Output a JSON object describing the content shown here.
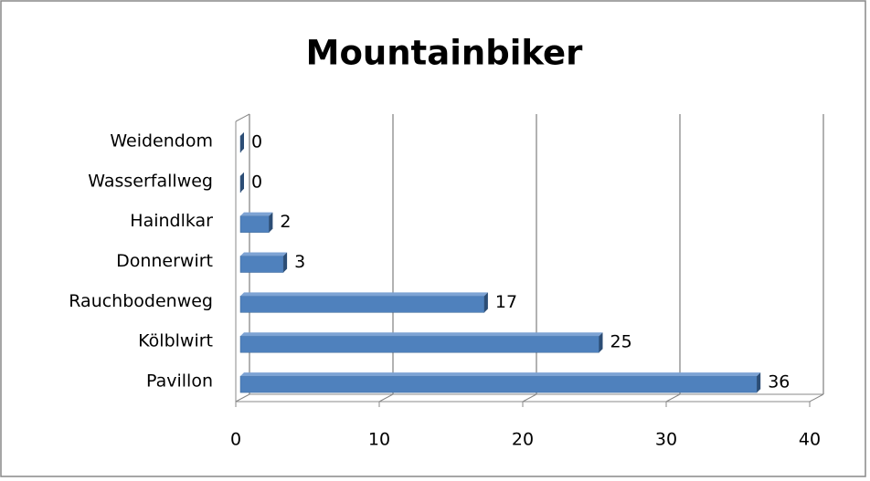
{
  "chart_data": {
    "type": "bar",
    "orientation": "horizontal",
    "title": "Mountainbiker",
    "categories": [
      "Weidendom",
      "Wasserfallweg",
      "Haindlkar",
      "Donnerwirt",
      "Rauchbodenweg",
      "Kölblwirt",
      "Pavillon"
    ],
    "values": [
      0,
      0,
      2,
      3,
      17,
      25,
      36
    ],
    "color": "#4f81bd",
    "xlim": [
      0,
      40
    ],
    "xticks": [
      0,
      10,
      20,
      30,
      40
    ],
    "grid": true
  }
}
